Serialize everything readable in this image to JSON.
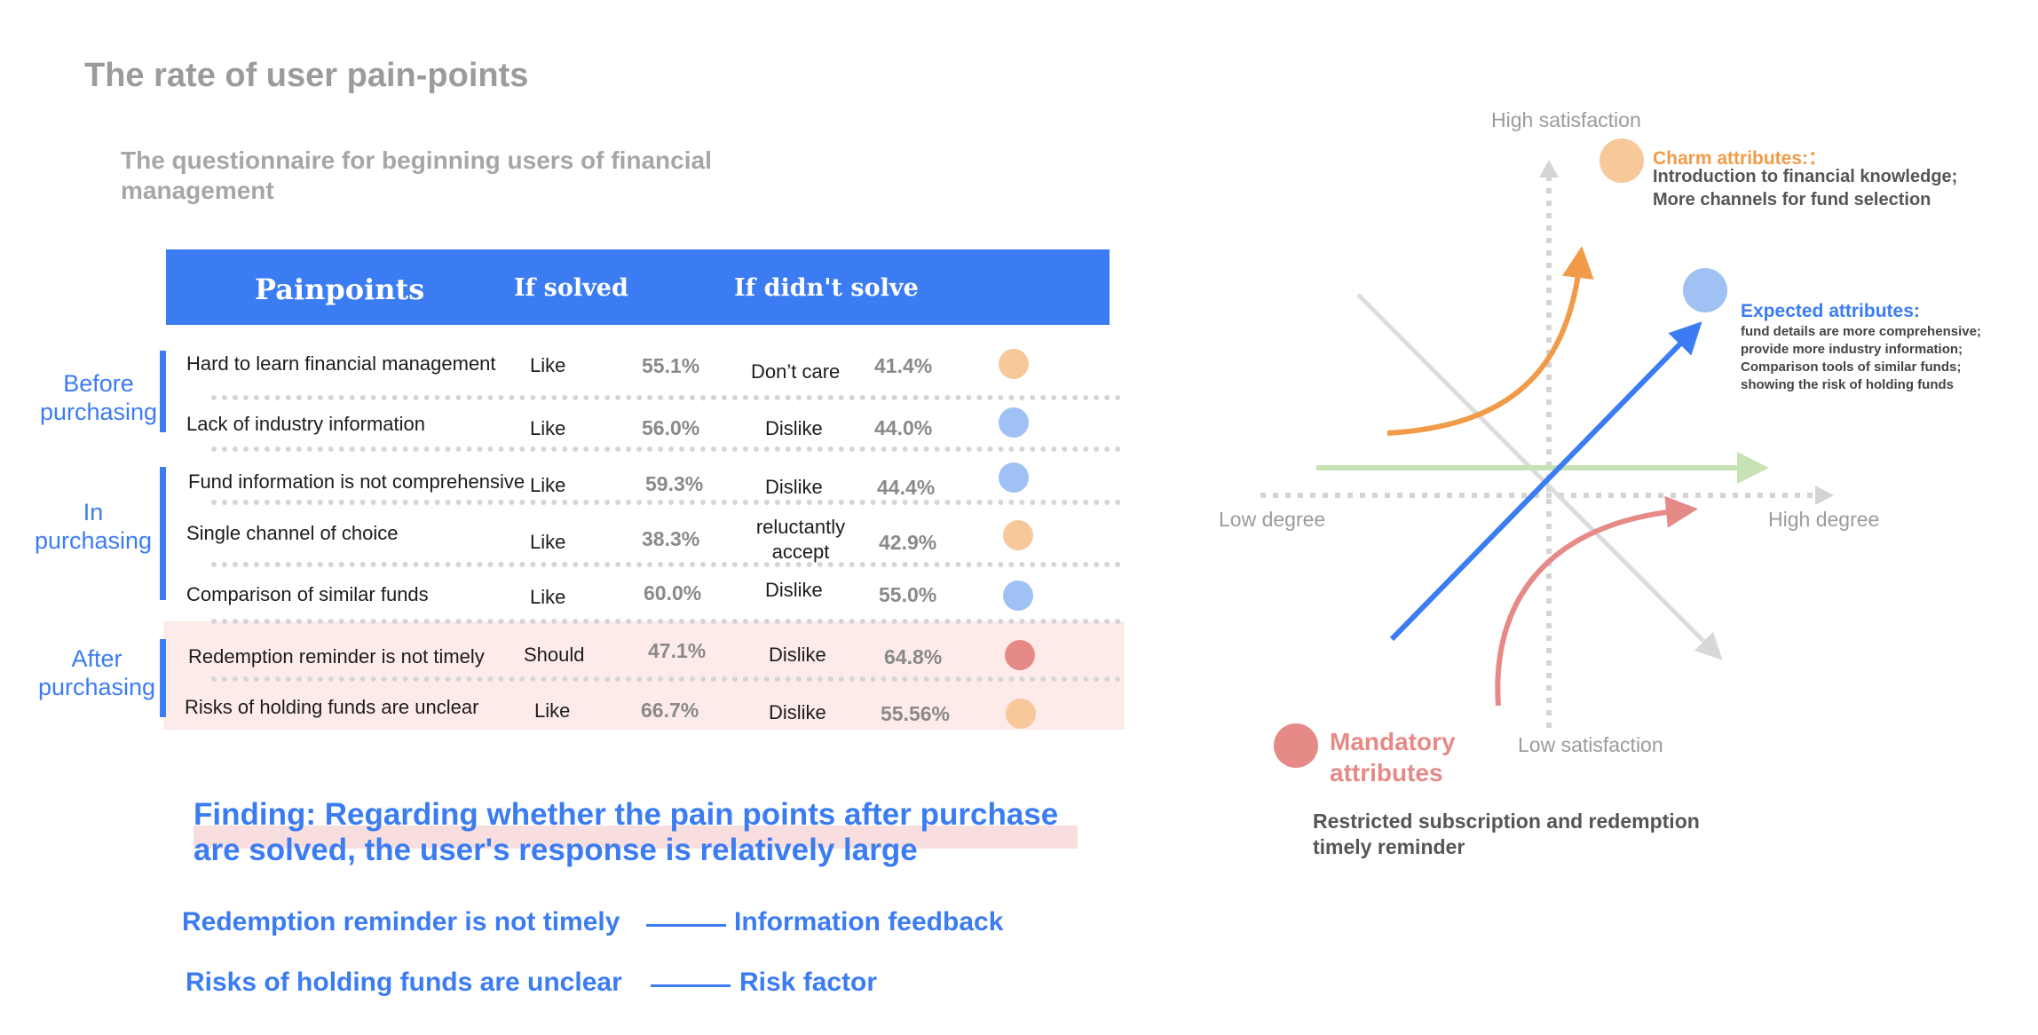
{
  "title": "The rate of user pain-points",
  "subtitle": "The questionnaire for beginning users of financial management",
  "table": {
    "headers": [
      "Painpoints",
      "If solved",
      "If didn't solve"
    ],
    "stages": [
      "Before purchasing",
      "In purchasing",
      "After purchasing"
    ],
    "rows": [
      {
        "painpoint": "Hard to learn financial management",
        "solved": "Like",
        "solved_pct": "55.1%",
        "unsolved": "Don’t care",
        "unsolved_pct": "41.4%",
        "dot_color": "#f7c89a"
      },
      {
        "painpoint": "Lack of industry information",
        "solved": "Like",
        "solved_pct": "56.0%",
        "unsolved": "Dislike",
        "unsolved_pct": "44.0%",
        "dot_color": "#9fc1f3"
      },
      {
        "painpoint": "Fund information is not comprehensive",
        "solved": "Like",
        "solved_pct": "59.3%",
        "unsolved": "Dislike",
        "unsolved_pct": "44.4%",
        "dot_color": "#9fc1f3"
      },
      {
        "painpoint": "Single channel of choice",
        "solved": "Like",
        "solved_pct": "38.3%",
        "unsolved": "reluctantly accept",
        "unsolved_pct": "42.9%",
        "dot_color": "#f7c89a"
      },
      {
        "painpoint": "Comparison of similar funds",
        "solved": "Like",
        "solved_pct": "60.0%",
        "unsolved": "Dislike",
        "unsolved_pct": "55.0%",
        "dot_color": "#9fc1f3"
      },
      {
        "painpoint": "Redemption reminder is not timely",
        "solved": "Should",
        "solved_pct": "47.1%",
        "unsolved": "Dislike",
        "unsolved_pct": "64.8%",
        "dot_color": "#e58a87"
      },
      {
        "painpoint": "Risks of holding funds are unclear",
        "solved": "Like",
        "solved_pct": "66.7%",
        "unsolved": "Dislike",
        "unsolved_pct": "55.56%",
        "dot_color": "#f7c89a"
      }
    ]
  },
  "finding": "Finding: Regarding whether the pain points after purchase are solved, the user's response is relatively large",
  "mappings": [
    {
      "from": "Redemption reminder is not timely",
      "to": "Information feedback"
    },
    {
      "from": "Risks of holding funds are unclear",
      "to": "Risk factor"
    }
  ],
  "kano": {
    "axis": {
      "top": "High satisfaction",
      "bottom": "Low satisfaction",
      "left": "Low degree",
      "right": "High degree"
    },
    "charm": {
      "title": "Charm attributes:：",
      "lines": [
        "Introduction to financial knowledge;",
        "More channels for fund selection"
      ],
      "color": "#f19b49"
    },
    "expected": {
      "title": "Expected attributes:",
      "lines": [
        "fund details are more comprehensive;",
        "provide more industry information;",
        "Comparison tools of similar funds;",
        "showing the risk of holding funds"
      ],
      "color": "#3b7cf2"
    },
    "mandatory": {
      "title_lines": [
        "Mandatory",
        "attributes"
      ],
      "lines": [
        "Restricted subscription and redemption",
        "timely reminder"
      ],
      "color": "#e58a87"
    }
  }
}
